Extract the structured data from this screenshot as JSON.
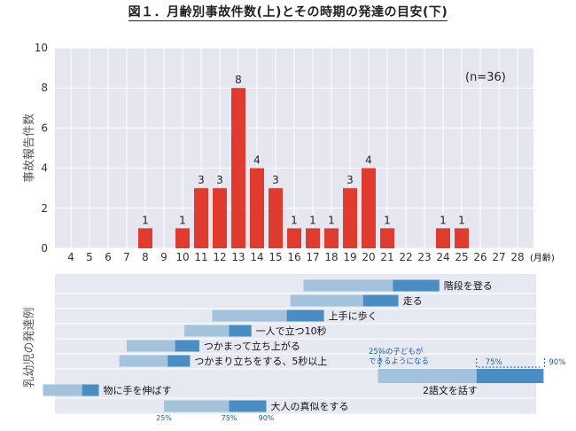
{
  "title": "図１．月齢別事故件数(上)とその時期の発達の目安(下)",
  "chart_data": [
    {
      "type": "bar",
      "ylabel": "事故報告件数",
      "xunit": "(月齢)",
      "note": "(n=36)",
      "ylim": [
        0,
        10
      ],
      "yticks": [
        0,
        2,
        4,
        6,
        8,
        10
      ],
      "categories": [
        "4",
        "5",
        "6",
        "7",
        "8",
        "9",
        "10",
        "11",
        "12",
        "13",
        "14",
        "15",
        "16",
        "17",
        "18",
        "19",
        "20",
        "21",
        "22",
        "23",
        "24",
        "25",
        "26",
        "27",
        "28"
      ],
      "values": [
        0,
        0,
        0,
        0,
        1,
        0,
        1,
        3,
        3,
        8,
        4,
        3,
        1,
        1,
        1,
        3,
        4,
        1,
        0,
        0,
        1,
        1,
        0,
        0,
        0
      ],
      "grid": true,
      "bar_color": "#e03b2f"
    },
    {
      "type": "range",
      "ylabel": "乳幼児の発達例",
      "x_axis": "月齢",
      "milestones": [
        {
          "label": "階段を登る",
          "p25": 16.5,
          "p75": 21.3,
          "p90": 23.8
        },
        {
          "label": "走る",
          "p25": 15.8,
          "p75": 19.7,
          "p90": 21.6
        },
        {
          "label": "上手に歩く",
          "p25": 11.6,
          "p75": 15.6,
          "p90": 17.6
        },
        {
          "label": "一人で立つ10秒",
          "p25": 10.1,
          "p75": 12.5,
          "p90": 13.7
        },
        {
          "label": "つかまって立ち上がる",
          "p25": 7.0,
          "p75": 9.6,
          "p90": 10.9
        },
        {
          "label": "つかまり立ちをする、5秒以上",
          "p25": 6.6,
          "p75": 9.2,
          "p90": 10.4
        },
        {
          "label": "物に手を伸ばす",
          "p25": 2.5,
          "p75": 4.6,
          "p90": 5.5
        },
        {
          "label": "大人の真似をする",
          "p25": 9.0,
          "p75": 12.5,
          "p90": 14.5
        },
        {
          "label": "2語文を話す",
          "p25": 20.5,
          "p75": 25.8,
          "p90": 29.4
        }
      ],
      "legend": {
        "note_line1": "25%の子どもが",
        "note_line2": "できるようになる",
        "p75": "75%",
        "p90": "90%",
        "bottom_25": "25%",
        "bottom_75": "75%",
        "bottom_90": "90%"
      },
      "colors": {
        "light": "#a3c3dc",
        "dark": "#4a8cc4",
        "band": "#e7e9f2"
      }
    }
  ]
}
